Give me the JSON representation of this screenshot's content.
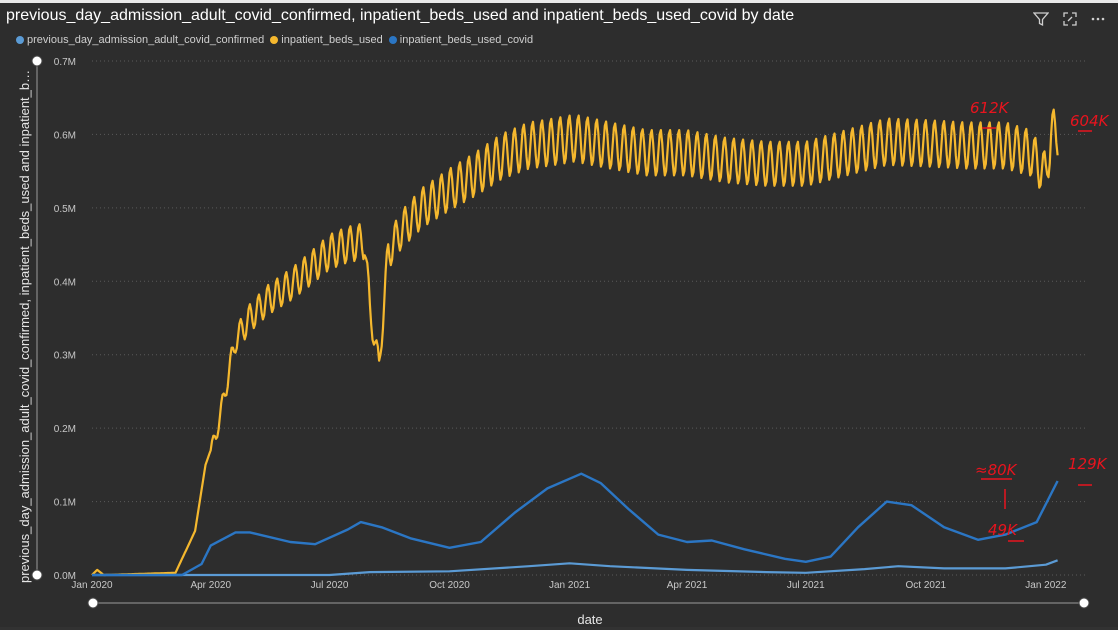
{
  "header": {
    "title": "previous_day_admission_adult_covid_confirmed, inpatient_beds_used and inpatient_beds_used_covid by date",
    "icons": [
      "filter-icon",
      "focus-mode-icon",
      "more-options-icon"
    ]
  },
  "colors": {
    "background": "#2d2d2d",
    "admission": "#5b9bd5",
    "beds": "#f5b82e",
    "covid": "#2b76c4",
    "annotation": "#e8141e",
    "grid": "#5a5a5a"
  },
  "annotations": [
    "612K",
    "604K",
    "≈80K",
    "49K",
    "129K"
  ],
  "chart_data": {
    "type": "line",
    "xlabel": "date",
    "ylabel": "previous_day_admission_adult_covid_confirmed, inpatient_beds_used and inpatient_beds_used_covid",
    "x_range": [
      "2020-01-01",
      "2022-01-31"
    ],
    "ylim": [
      0,
      700000
    ],
    "y_ticks": [
      "0.0M",
      "0.1M",
      "0.2M",
      "0.3M",
      "0.4M",
      "0.5M",
      "0.6M",
      "0.7M"
    ],
    "x_ticks": [
      "Jan 2020",
      "Apr 2020",
      "Jul 2020",
      "Oct 2020",
      "Jan 2021",
      "Apr 2021",
      "Jul 2021",
      "Oct 2021",
      "Jan 2022"
    ],
    "grid": true,
    "legend_position": "top-left",
    "series": [
      {
        "name": "previous_day_admission_adult_covid_confirmed",
        "points": [
          [
            "2020-01-01",
            0
          ],
          [
            "2020-07-01",
            0
          ],
          [
            "2020-08-01",
            4000
          ],
          [
            "2020-10-01",
            5000
          ],
          [
            "2020-12-01",
            12000
          ],
          [
            "2021-01-01",
            16000
          ],
          [
            "2021-02-01",
            12000
          ],
          [
            "2021-04-01",
            7000
          ],
          [
            "2021-06-01",
            4000
          ],
          [
            "2021-07-01",
            3000
          ],
          [
            "2021-08-15",
            8000
          ],
          [
            "2021-09-10",
            12000
          ],
          [
            "2021-10-15",
            9000
          ],
          [
            "2021-12-01",
            9000
          ],
          [
            "2022-01-01",
            14000
          ],
          [
            "2022-01-10",
            20000
          ]
        ]
      },
      {
        "name": "inpatient_beds_used",
        "points": [
          [
            "2020-01-01",
            0
          ],
          [
            "2020-01-05",
            7000
          ],
          [
            "2020-01-10",
            0
          ],
          [
            "2020-03-05",
            3000
          ],
          [
            "2020-03-20",
            60000
          ],
          [
            "2020-03-28",
            150000
          ],
          [
            "2020-04-05",
            190000
          ],
          [
            "2020-04-12",
            250000
          ],
          [
            "2020-04-20",
            320000
          ],
          [
            "2020-05-01",
            350000
          ],
          [
            "2020-05-15",
            375000
          ],
          [
            "2020-06-01",
            395000
          ],
          [
            "2020-06-15",
            415000
          ],
          [
            "2020-07-01",
            440000
          ],
          [
            "2020-07-15",
            450000
          ],
          [
            "2020-07-28",
            455000
          ],
          [
            "2020-08-01",
            360000
          ],
          [
            "2020-08-08",
            285000
          ],
          [
            "2020-08-15",
            440000
          ],
          [
            "2020-08-25",
            470000
          ],
          [
            "2020-09-10",
            500000
          ],
          [
            "2020-10-01",
            525000
          ],
          [
            "2020-10-20",
            545000
          ],
          [
            "2020-11-10",
            570000
          ],
          [
            "2020-12-01",
            585000
          ],
          [
            "2020-12-20",
            590000
          ],
          [
            "2021-01-05",
            595000
          ],
          [
            "2021-02-01",
            585000
          ],
          [
            "2021-03-01",
            575000
          ],
          [
            "2021-04-01",
            575000
          ],
          [
            "2021-05-01",
            565000
          ],
          [
            "2021-06-01",
            560000
          ],
          [
            "2021-07-01",
            560000
          ],
          [
            "2021-08-01",
            575000
          ],
          [
            "2021-09-01",
            590000
          ],
          [
            "2021-10-01",
            588000
          ],
          [
            "2021-11-01",
            585000
          ],
          [
            "2021-12-01",
            585000
          ],
          [
            "2021-12-20",
            575000
          ],
          [
            "2022-01-01",
            545000
          ],
          [
            "2022-01-05",
            600000
          ],
          [
            "2022-01-10",
            604000
          ]
        ]
      },
      {
        "name": "inpatient_beds_used_covid",
        "points": [
          [
            "2020-01-01",
            0
          ],
          [
            "2020-03-10",
            0
          ],
          [
            "2020-03-25",
            15000
          ],
          [
            "2020-04-01",
            40000
          ],
          [
            "2020-04-20",
            58000
          ],
          [
            "2020-05-01",
            58000
          ],
          [
            "2020-06-01",
            45000
          ],
          [
            "2020-06-20",
            42000
          ],
          [
            "2020-07-15",
            62000
          ],
          [
            "2020-07-25",
            72000
          ],
          [
            "2020-08-10",
            65000
          ],
          [
            "2020-09-01",
            50000
          ],
          [
            "2020-10-01",
            37000
          ],
          [
            "2020-10-25",
            45000
          ],
          [
            "2020-11-20",
            85000
          ],
          [
            "2020-12-15",
            118000
          ],
          [
            "2021-01-10",
            138000
          ],
          [
            "2021-01-25",
            125000
          ],
          [
            "2021-02-15",
            90000
          ],
          [
            "2021-03-10",
            55000
          ],
          [
            "2021-04-01",
            45000
          ],
          [
            "2021-04-20",
            47000
          ],
          [
            "2021-05-15",
            35000
          ],
          [
            "2021-06-15",
            22000
          ],
          [
            "2021-07-01",
            18000
          ],
          [
            "2021-07-20",
            25000
          ],
          [
            "2021-08-10",
            65000
          ],
          [
            "2021-09-01",
            100000
          ],
          [
            "2021-09-20",
            95000
          ],
          [
            "2021-10-15",
            65000
          ],
          [
            "2021-11-10",
            48000
          ],
          [
            "2021-12-01",
            55000
          ],
          [
            "2021-12-25",
            72000
          ],
          [
            "2022-01-10",
            128000
          ]
        ]
      }
    ]
  }
}
